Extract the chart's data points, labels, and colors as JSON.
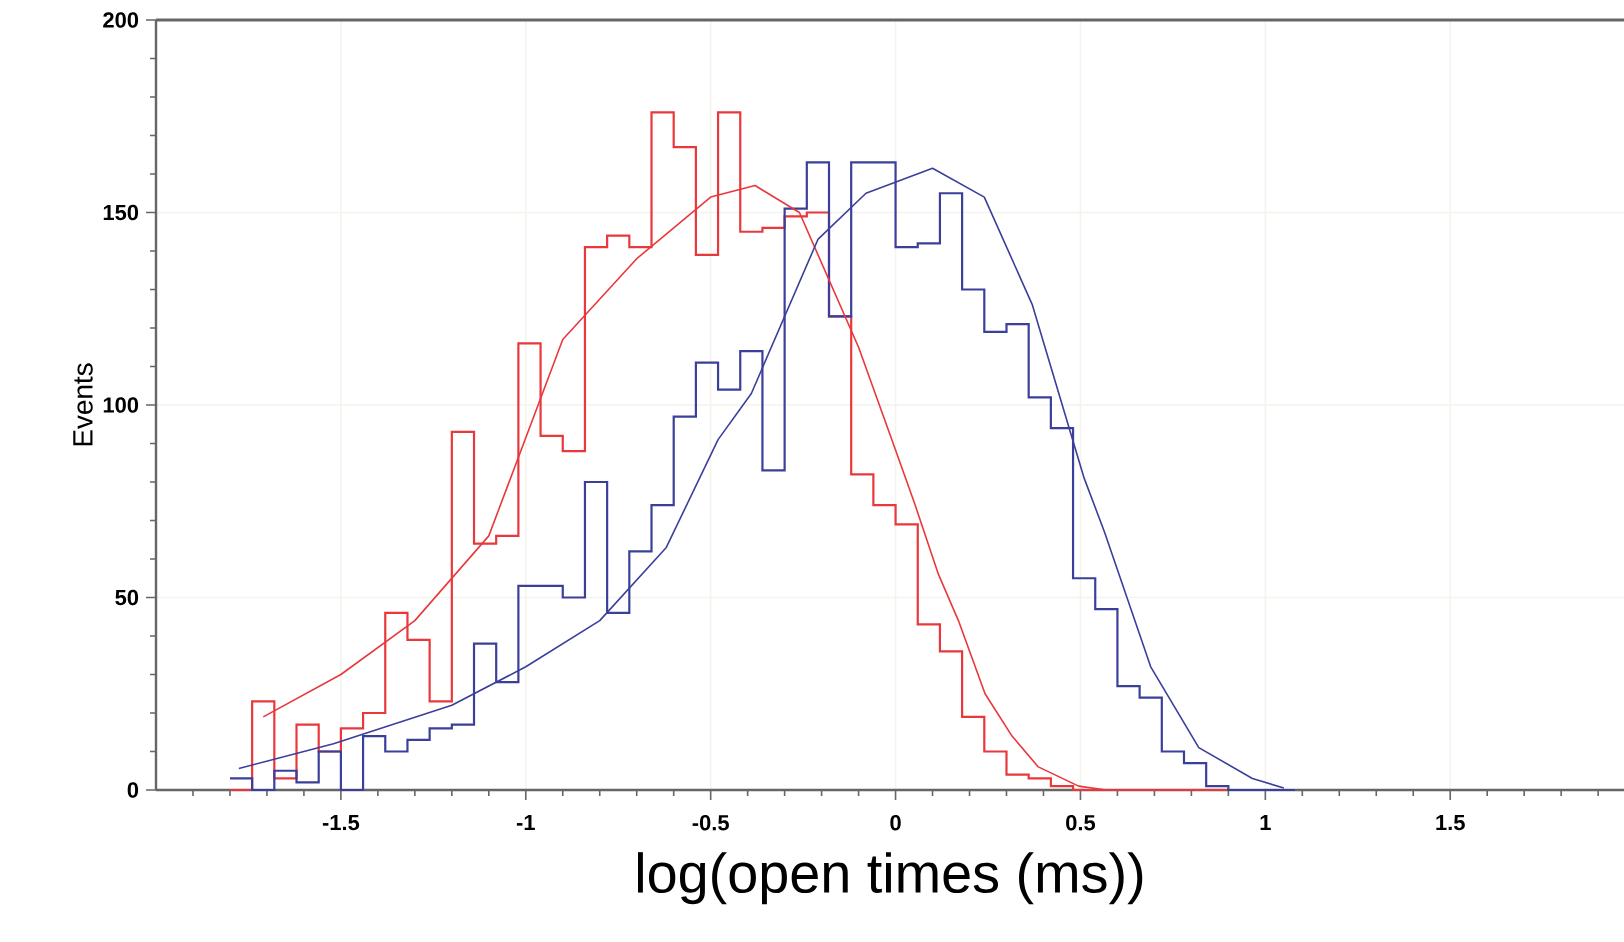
{
  "chart_data": {
    "type": "histogram",
    "xlabel": "log(open times (ms))",
    "ylabel": "Events",
    "bins": [
      -1.8,
      -1.74,
      -1.68,
      -1.62,
      -1.56,
      -1.5,
      -1.44,
      -1.38,
      -1.32,
      -1.26,
      -1.2,
      -1.14,
      -1.08,
      -1.02,
      -0.96,
      -0.9,
      -0.84,
      -0.78,
      -0.72,
      -0.66,
      -0.6,
      -0.54,
      -0.48,
      -0.42,
      -0.36,
      -0.3,
      -0.24,
      -0.18,
      -0.12,
      -0.06,
      0,
      0.06,
      0.12,
      0.18,
      0.24,
      0.3,
      0.36,
      0.42,
      0.48,
      0.54,
      0.6,
      0.66,
      0.72,
      0.78,
      0.84,
      0.9,
      0.96,
      1.02,
      1.08
    ],
    "series": [
      {
        "color": "#e8383b",
        "values": [
          0,
          23,
          3,
          17,
          10,
          16,
          20,
          46,
          39,
          23,
          93,
          64,
          66,
          116,
          92,
          88,
          141,
          144,
          141,
          176,
          167,
          139,
          176,
          145,
          146,
          149,
          150,
          123,
          82,
          74,
          69,
          43,
          36,
          19,
          10,
          4,
          3,
          1,
          0,
          0,
          0,
          0,
          0,
          0,
          0,
          0,
          0,
          0
        ]
      },
      {
        "color": "#3a3f9a",
        "values": [
          3,
          0,
          5,
          2,
          10,
          0,
          14,
          10,
          13,
          16,
          17,
          38,
          28,
          53,
          53,
          50,
          80,
          46,
          62,
          74,
          97,
          111,
          104,
          114,
          83,
          151,
          163,
          123,
          163,
          163,
          141,
          142,
          155,
          130,
          119,
          121,
          102,
          94,
          55,
          47,
          27,
          24,
          10,
          7,
          1,
          0,
          0,
          0
        ]
      },
      {
        "type": "line",
        "color": "#e8383b",
        "x": [
          -1.71,
          -1.5,
          -1.3,
          -1.1,
          -0.9,
          -0.7,
          -0.5,
          -0.38,
          -0.26,
          -0.1,
          -0.01,
          0.053,
          0.116,
          0.17,
          0.242,
          0.315,
          0.386,
          0.495,
          0.57
        ],
        "values": [
          19,
          30,
          44,
          66,
          117,
          138,
          154,
          157,
          150,
          115,
          91,
          74,
          56,
          44,
          25,
          14,
          6,
          1,
          0
        ]
      },
      {
        "type": "line",
        "color": "#3a3f9a",
        "x": [
          -1.776,
          -1.52,
          -1.2,
          -1.0,
          -0.8,
          -0.62,
          -0.48,
          -0.39,
          -0.21,
          -0.08,
          0.1,
          0.24,
          0.37,
          0.51,
          0.565,
          0.69,
          0.82,
          0.965,
          1.05
        ],
        "values": [
          5.6,
          12,
          22,
          32,
          44,
          63,
          91,
          103,
          143,
          155,
          161.5,
          154,
          126,
          81,
          67,
          32,
          11,
          3,
          0.5
        ]
      }
    ],
    "xlim": [
      -2,
      1.97
    ],
    "ylim": [
      0,
      200
    ],
    "xticks": [
      {
        "value": -1.9,
        "label": null
      },
      {
        "value": -1.8,
        "label": null
      },
      {
        "value": -1.7,
        "label": null
      },
      {
        "value": -1.6,
        "label": null
      },
      -1.5,
      {
        "value": -1.4,
        "label": null
      },
      {
        "value": -1.3,
        "label": null
      },
      {
        "value": -1.2,
        "label": null
      },
      {
        "value": -1.1,
        "label": null
      },
      -1,
      {
        "value": -0.9,
        "label": null
      },
      {
        "value": -0.8,
        "label": null
      },
      {
        "value": -0.7,
        "label": null
      },
      {
        "value": -0.6,
        "label": null
      },
      -0.5,
      {
        "value": -0.4,
        "label": null
      },
      {
        "value": -0.3,
        "label": null
      },
      {
        "value": -0.2,
        "label": null
      },
      {
        "value": -0.1,
        "label": null
      },
      0,
      {
        "value": 0.1,
        "label": null
      },
      {
        "value": 0.2,
        "label": null
      },
      {
        "value": 0.3,
        "label": null
      },
      {
        "value": 0.4,
        "label": null
      },
      0.5,
      {
        "value": 0.6,
        "label": null
      },
      {
        "value": 0.7,
        "label": null
      },
      {
        "value": 0.8,
        "label": null
      },
      {
        "value": 0.9,
        "label": null
      },
      1,
      {
        "value": 1.1,
        "label": null
      },
      {
        "value": 1.2,
        "label": null
      },
      {
        "value": 1.3,
        "label": null
      },
      {
        "value": 1.4,
        "label": null
      },
      1.5,
      {
        "value": 1.6,
        "label": null
      },
      {
        "value": 1.7,
        "label": null
      },
      {
        "value": 1.8,
        "label": null
      },
      {
        "value": 1.9,
        "label": null
      }
    ],
    "yticks": [
      0,
      {
        "value": 10,
        "label": null
      },
      {
        "value": 20,
        "label": null
      },
      {
        "value": 30,
        "label": null
      },
      {
        "value": 40,
        "label": null
      },
      50,
      {
        "value": 60,
        "label": null
      },
      {
        "value": 70,
        "label": null
      },
      {
        "value": 80,
        "label": null
      },
      {
        "value": 90,
        "label": null
      },
      100,
      {
        "value": 110,
        "label": null
      },
      {
        "value": 120,
        "label": null
      },
      {
        "value": 130,
        "label": null
      },
      {
        "value": 140,
        "label": null
      },
      150,
      {
        "value": 160,
        "label": null
      },
      {
        "value": 170,
        "label": null
      },
      {
        "value": 180,
        "label": null
      },
      {
        "value": 190,
        "label": null
      },
      200
    ],
    "grid": true
  }
}
